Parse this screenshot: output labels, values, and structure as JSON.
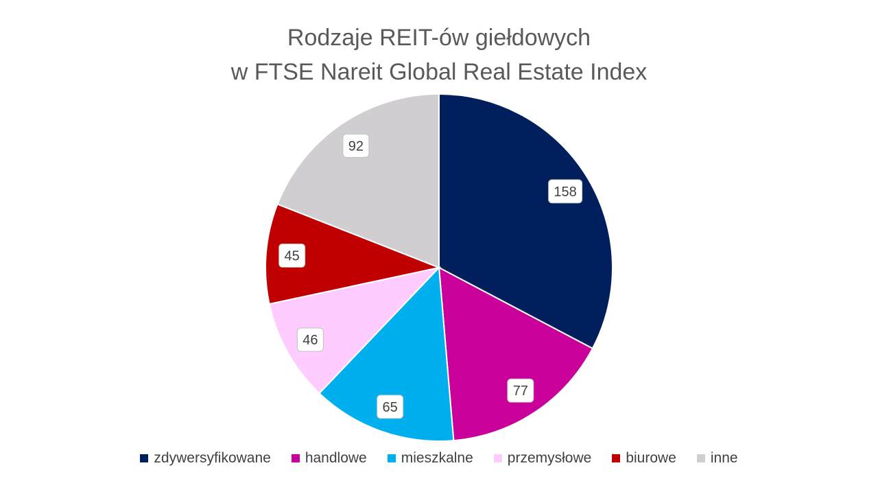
{
  "chart_data": {
    "type": "pie",
    "title_line1": "Rodzaje REIT-ów giełdowych",
    "title_line2": "w FTSE Nareit Global Real Estate Index",
    "categories": [
      "zdywersyfikowane",
      "handlowe",
      "mieszkalne",
      "przemysłowe",
      "biurowe",
      "inne"
    ],
    "values": [
      158,
      77,
      65,
      46,
      45,
      92
    ],
    "colors": [
      "#001F5C",
      "#C9009A",
      "#00B0EE",
      "#FFCCFF",
      "#C00000",
      "#D0CED0"
    ],
    "legend_position": "bottom",
    "start_angle": "top, clockwise"
  }
}
